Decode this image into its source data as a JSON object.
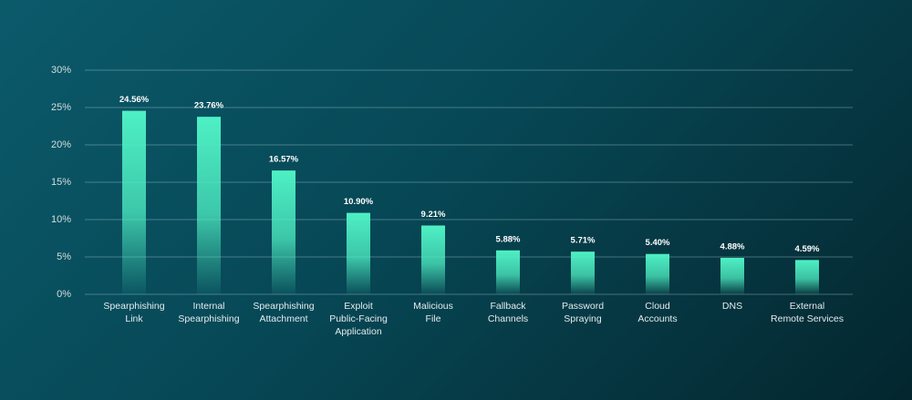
{
  "chart_data": {
    "type": "bar",
    "categories": [
      "Spearphishing\nLink",
      "Internal\nSpearphishing",
      "Spearphishing\nAttachment",
      "Exploit\nPublic-Facing\nApplication",
      "Malicious\nFile",
      "Fallback\nChannels",
      "Password\nSpraying",
      "Cloud\nAccounts",
      "DNS",
      "External\nRemote Services"
    ],
    "values": [
      24.56,
      23.76,
      16.57,
      10.9,
      9.21,
      5.88,
      5.71,
      5.4,
      4.88,
      4.59
    ],
    "value_labels": [
      "24.56%",
      "23.76%",
      "16.57%",
      "10.90%",
      "9.21%",
      "5.88%",
      "5.71%",
      "5.40%",
      "4.88%",
      "4.59%"
    ],
    "color": "#4ef0c4",
    "ylim": [
      0,
      30
    ],
    "yticks": [
      {
        "value": 0,
        "label": "0%"
      },
      {
        "value": 5,
        "label": "5%"
      },
      {
        "value": 10,
        "label": "10%"
      },
      {
        "value": 15,
        "label": "15%"
      },
      {
        "value": 20,
        "label": "20%"
      },
      {
        "value": 25,
        "label": "25%"
      },
      {
        "value": 30,
        "label": "30%"
      }
    ],
    "grid": true
  }
}
